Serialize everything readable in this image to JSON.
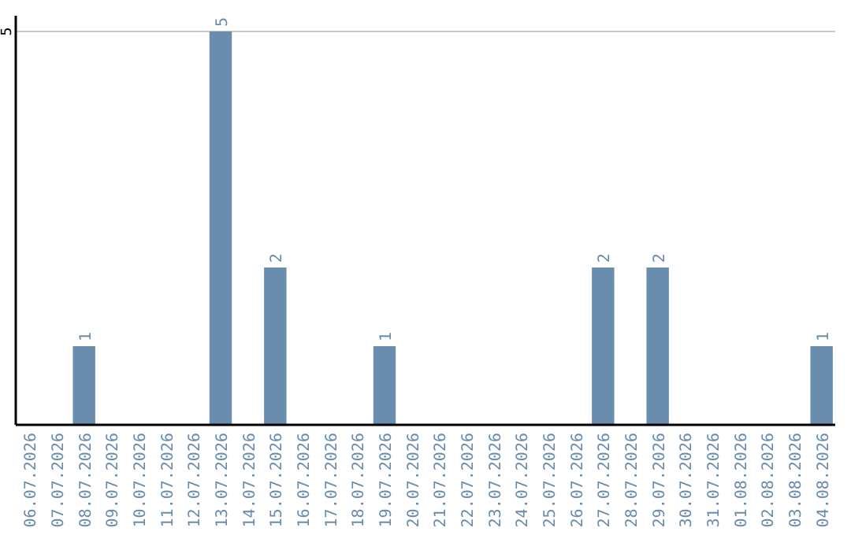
{
  "chart_data": {
    "type": "bar",
    "categories": [
      "06.07.2026",
      "07.07.2026",
      "08.07.2026",
      "09.07.2026",
      "10.07.2026",
      "11.07.2026",
      "12.07.2026",
      "13.07.2026",
      "14.07.2026",
      "15.07.2026",
      "16.07.2026",
      "17.07.2026",
      "18.07.2026",
      "19.07.2026",
      "20.07.2026",
      "21.07.2026",
      "22.07.2026",
      "23.07.2026",
      "24.07.2026",
      "25.07.2026",
      "26.07.2026",
      "27.07.2026",
      "28.07.2026",
      "29.07.2026",
      "30.07.2026",
      "31.07.2026",
      "01.08.2026",
      "02.08.2026",
      "03.08.2026",
      "04.08.2026"
    ],
    "values": [
      0,
      0,
      1,
      0,
      0,
      0,
      0,
      5,
      0,
      2,
      0,
      0,
      0,
      1,
      0,
      0,
      0,
      0,
      0,
      0,
      0,
      2,
      0,
      2,
      0,
      0,
      0,
      0,
      0,
      1
    ],
    "color": "#6a8cad",
    "ylim": [
      0,
      5.2
    ],
    "yticks": [
      5
    ],
    "grid": "y",
    "value_labels": [
      null,
      null,
      "1",
      null,
      null,
      null,
      null,
      "5",
      null,
      "2",
      null,
      null,
      null,
      "1",
      null,
      null,
      null,
      null,
      null,
      null,
      null,
      "2",
      null,
      "2",
      null,
      null,
      null,
      null,
      null,
      "1"
    ]
  }
}
